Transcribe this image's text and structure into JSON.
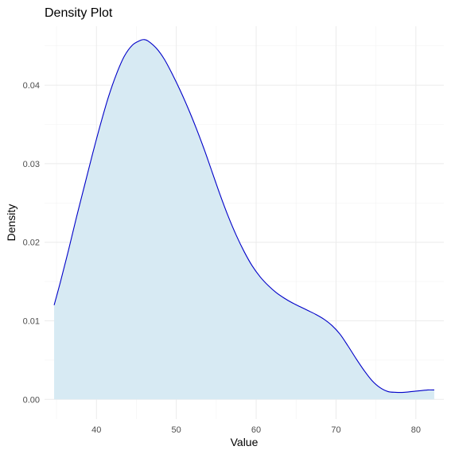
{
  "chart_data": {
    "type": "area",
    "title": "Density Plot",
    "xlabel": "Value",
    "ylabel": "Density",
    "xlim": [
      33.5,
      83.5
    ],
    "ylim": [
      -0.0025,
      0.0475
    ],
    "x_ticks": [
      40,
      50,
      60,
      70,
      80
    ],
    "y_ticks": [
      0.0,
      0.01,
      0.02,
      0.03,
      0.04
    ],
    "x_tick_labels": [
      "40",
      "50",
      "60",
      "70",
      "80"
    ],
    "y_tick_labels": [
      "0.00",
      "0.01",
      "0.02",
      "0.03",
      "0.04"
    ],
    "grid": true,
    "legend": "none",
    "colors": {
      "fill": "#d7eaf3",
      "line": "#0000c8",
      "grid": "#ebebeb",
      "background": "#ffffff"
    },
    "series": [
      {
        "x": [
          34.7,
          35.5,
          36.5,
          37.5,
          38.5,
          39.5,
          40.5,
          41.5,
          42.5,
          43.5,
          44.5,
          45.5,
          46.0,
          46.5,
          47.5,
          48.5,
          49.5,
          50.5,
          51.5,
          52.5,
          53.5,
          54.5,
          55.5,
          56.5,
          57.5,
          58.5,
          59.5,
          60.5,
          61.5,
          62.5,
          63.5,
          64.5,
          65.5,
          66.5,
          67.5,
          68.5,
          69.5,
          70.5,
          71.5,
          72.5,
          73.5,
          74.5,
          75.5,
          76.5,
          77.5,
          78.5,
          79.5,
          80.5,
          81.5,
          82.3
        ],
        "y": [
          0.012,
          0.015,
          0.019,
          0.0232,
          0.0272,
          0.0312,
          0.035,
          0.0385,
          0.0414,
          0.0437,
          0.0451,
          0.0457,
          0.0458,
          0.0456,
          0.0447,
          0.0433,
          0.0414,
          0.0393,
          0.037,
          0.0345,
          0.0318,
          0.0289,
          0.026,
          0.0233,
          0.0209,
          0.0188,
          0.017,
          0.0156,
          0.0145,
          0.0136,
          0.0129,
          0.0123,
          0.0118,
          0.0113,
          0.0108,
          0.0102,
          0.0094,
          0.0083,
          0.0068,
          0.0052,
          0.0037,
          0.0024,
          0.0015,
          0.001,
          0.0009,
          0.0009,
          0.001,
          0.0011,
          0.0012,
          0.0012
        ]
      }
    ]
  }
}
